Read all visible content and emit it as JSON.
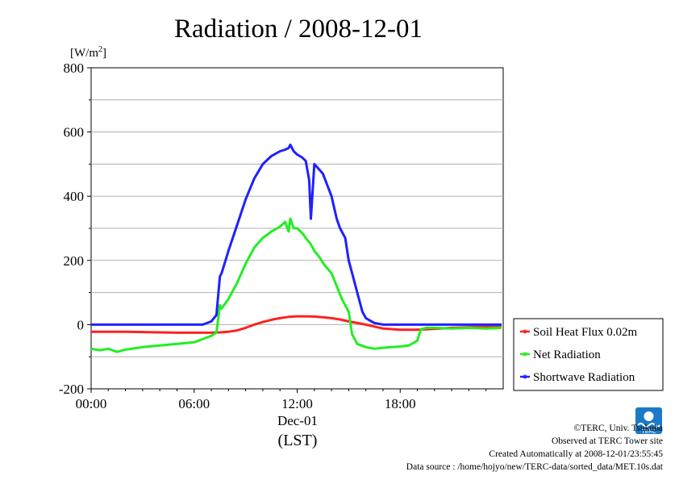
{
  "chart_data": {
    "type": "line",
    "title": "Radiation / 2008-12-01",
    "ylabel_unit": "[W/m",
    "ylabel_sup": "2",
    "ylabel_close": "]",
    "x_ticks": [
      "00:00",
      "06:00",
      "12:00",
      "18:00"
    ],
    "x_tick_hours": [
      0,
      6,
      12,
      18
    ],
    "date_label": "Dec-01",
    "time_zone_label": "(LST)",
    "y_ticks": [
      "-200",
      "0",
      "200",
      "400",
      "600",
      "800"
    ],
    "y_tick_values": [
      -200,
      0,
      200,
      400,
      600,
      800
    ],
    "ylim": [
      -200,
      800
    ],
    "xlim_hours": [
      0,
      24
    ],
    "grid": true,
    "legend_position": "right",
    "series": [
      {
        "name": "Soil Heat Flux 0.02m",
        "color": "#ff2020",
        "x": [
          0,
          1,
          2,
          3,
          4,
          5,
          6,
          7,
          7.5,
          8,
          8.5,
          9,
          9.5,
          10,
          10.5,
          11,
          11.5,
          12,
          12.5,
          13,
          13.5,
          14,
          14.5,
          15,
          15.5,
          16,
          16.5,
          17,
          18,
          19,
          20,
          21,
          22,
          23,
          23.9
        ],
        "y": [
          -22,
          -22,
          -22,
          -23,
          -24,
          -25,
          -25,
          -25,
          -24,
          -22,
          -18,
          -10,
          0,
          8,
          15,
          20,
          24,
          26,
          26,
          25,
          23,
          20,
          16,
          10,
          5,
          0,
          -6,
          -12,
          -16,
          -16,
          -13,
          -10,
          -8,
          -7,
          -7
        ]
      },
      {
        "name": "Net Radiation",
        "color": "#22ee22",
        "x": [
          0,
          0.5,
          1,
          1.5,
          2,
          3,
          4,
          5,
          6,
          7,
          7.3,
          7.5,
          7.6,
          8,
          8.5,
          9,
          9.5,
          10,
          10.5,
          11,
          11.3,
          11.5,
          11.6,
          11.8,
          12,
          12.3,
          12.5,
          12.8,
          13,
          13.3,
          13.6,
          14,
          14.3,
          14.6,
          15,
          15.2,
          15.5,
          16,
          16.5,
          17,
          17.5,
          18,
          18.5,
          19,
          19.2,
          19.5,
          20,
          21,
          22,
          23,
          23.9
        ],
        "y": [
          -75,
          -80,
          -75,
          -85,
          -78,
          -70,
          -65,
          -60,
          -55,
          -35,
          -25,
          60,
          50,
          80,
          130,
          190,
          240,
          270,
          290,
          305,
          320,
          290,
          330,
          300,
          300,
          285,
          270,
          250,
          230,
          210,
          185,
          160,
          120,
          80,
          40,
          -30,
          -60,
          -70,
          -75,
          -72,
          -70,
          -68,
          -65,
          -50,
          -15,
          -10,
          -10,
          -12,
          -10,
          -12,
          -10
        ]
      },
      {
        "name": "Shortwave Radiation",
        "color": "#2020ff",
        "x": [
          0,
          1,
          2,
          3,
          4,
          5,
          6,
          6.5,
          7,
          7.3,
          7.5,
          7.6,
          8,
          8.5,
          9,
          9.5,
          10,
          10.5,
          11,
          11.3,
          11.5,
          11.6,
          11.8,
          12,
          12.3,
          12.5,
          12.7,
          12.8,
          13,
          13.5,
          14,
          14.3,
          14.5,
          14.8,
          15,
          15.3,
          15.5,
          15.8,
          16,
          16.5,
          17,
          18,
          19,
          20,
          21,
          22,
          23,
          23.9
        ],
        "y": [
          0,
          0,
          0,
          0,
          0,
          0,
          0,
          0,
          10,
          30,
          150,
          160,
          230,
          310,
          390,
          455,
          500,
          525,
          540,
          545,
          550,
          560,
          540,
          530,
          520,
          510,
          450,
          330,
          500,
          470,
          400,
          330,
          300,
          270,
          200,
          140,
          100,
          40,
          20,
          5,
          0,
          0,
          0,
          0,
          0,
          0,
          0,
          0
        ]
      }
    ]
  },
  "credits": {
    "copyright": "©TERC, Univ. Tsukuba",
    "observed": "Observed at TERC Tower site",
    "created": "Created Automatically at 2008-12-01/23:55:45",
    "source": "Data source : /home/hojyo/new/TERC-data/sorted_data/MET.10s.dat",
    "logo_text": "TERC"
  }
}
